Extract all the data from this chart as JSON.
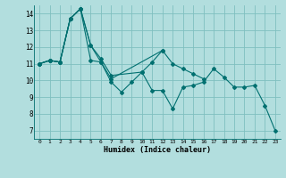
{
  "title": "",
  "xlabel": "Humidex (Indice chaleur)",
  "bg_color": "#b2dede",
  "grid_color": "#7fbfbf",
  "line_color": "#007070",
  "xlim": [
    -0.5,
    23.5
  ],
  "ylim": [
    6.5,
    14.5
  ],
  "xticks": [
    0,
    1,
    2,
    3,
    4,
    5,
    6,
    7,
    8,
    9,
    10,
    11,
    12,
    13,
    14,
    15,
    16,
    17,
    18,
    19,
    20,
    21,
    22,
    23
  ],
  "yticks": [
    7,
    8,
    9,
    10,
    11,
    12,
    13,
    14
  ],
  "series": [
    [
      11.0,
      11.2,
      11.1,
      13.7,
      14.3,
      11.2,
      11.1,
      9.9,
      9.3,
      9.9,
      10.5,
      9.4,
      9.4,
      8.3,
      9.6,
      9.7,
      9.9,
      10.7,
      10.2,
      9.6,
      9.6,
      9.7,
      8.5,
      7.0
    ],
    [
      11.0,
      11.2,
      11.1,
      13.7,
      14.3,
      12.1,
      11.1,
      10.1,
      null,
      null,
      null,
      null,
      11.8,
      null,
      null,
      null,
      null,
      null,
      null,
      null,
      null,
      null,
      null,
      null
    ],
    [
      11.0,
      11.2,
      11.1,
      13.7,
      14.3,
      12.1,
      11.3,
      10.3,
      null,
      null,
      10.5,
      11.1,
      11.8,
      11.0,
      10.7,
      10.4,
      10.1,
      null,
      null,
      null,
      null,
      null,
      null,
      null
    ],
    [
      11.0,
      11.2,
      11.1,
      13.7,
      14.3,
      null,
      null,
      null,
      null,
      null,
      null,
      null,
      null,
      null,
      null,
      null,
      null,
      null,
      null,
      null,
      null,
      null,
      null,
      null
    ]
  ]
}
